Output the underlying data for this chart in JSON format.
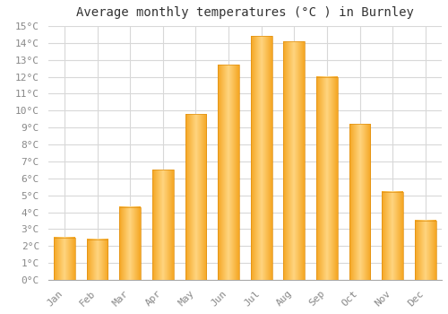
{
  "title": "Average monthly temperatures (°C ) in Burnley",
  "months": [
    "Jan",
    "Feb",
    "Mar",
    "Apr",
    "May",
    "Jun",
    "Jul",
    "Aug",
    "Sep",
    "Oct",
    "Nov",
    "Dec"
  ],
  "temperatures": [
    2.5,
    2.4,
    4.3,
    6.5,
    9.8,
    12.7,
    14.4,
    14.1,
    12.0,
    9.2,
    5.2,
    3.5
  ],
  "bar_color_bottom": "#F5A623",
  "bar_color_top": "#FFD580",
  "bar_edge_color": "#E09010",
  "background_color": "#ffffff",
  "plot_bg_color": "#ffffff",
  "grid_color": "#d8d8d8",
  "ylim": [
    0,
    15
  ],
  "ytick_step": 1,
  "title_fontsize": 10,
  "tick_fontsize": 8,
  "tick_color": "#888888"
}
